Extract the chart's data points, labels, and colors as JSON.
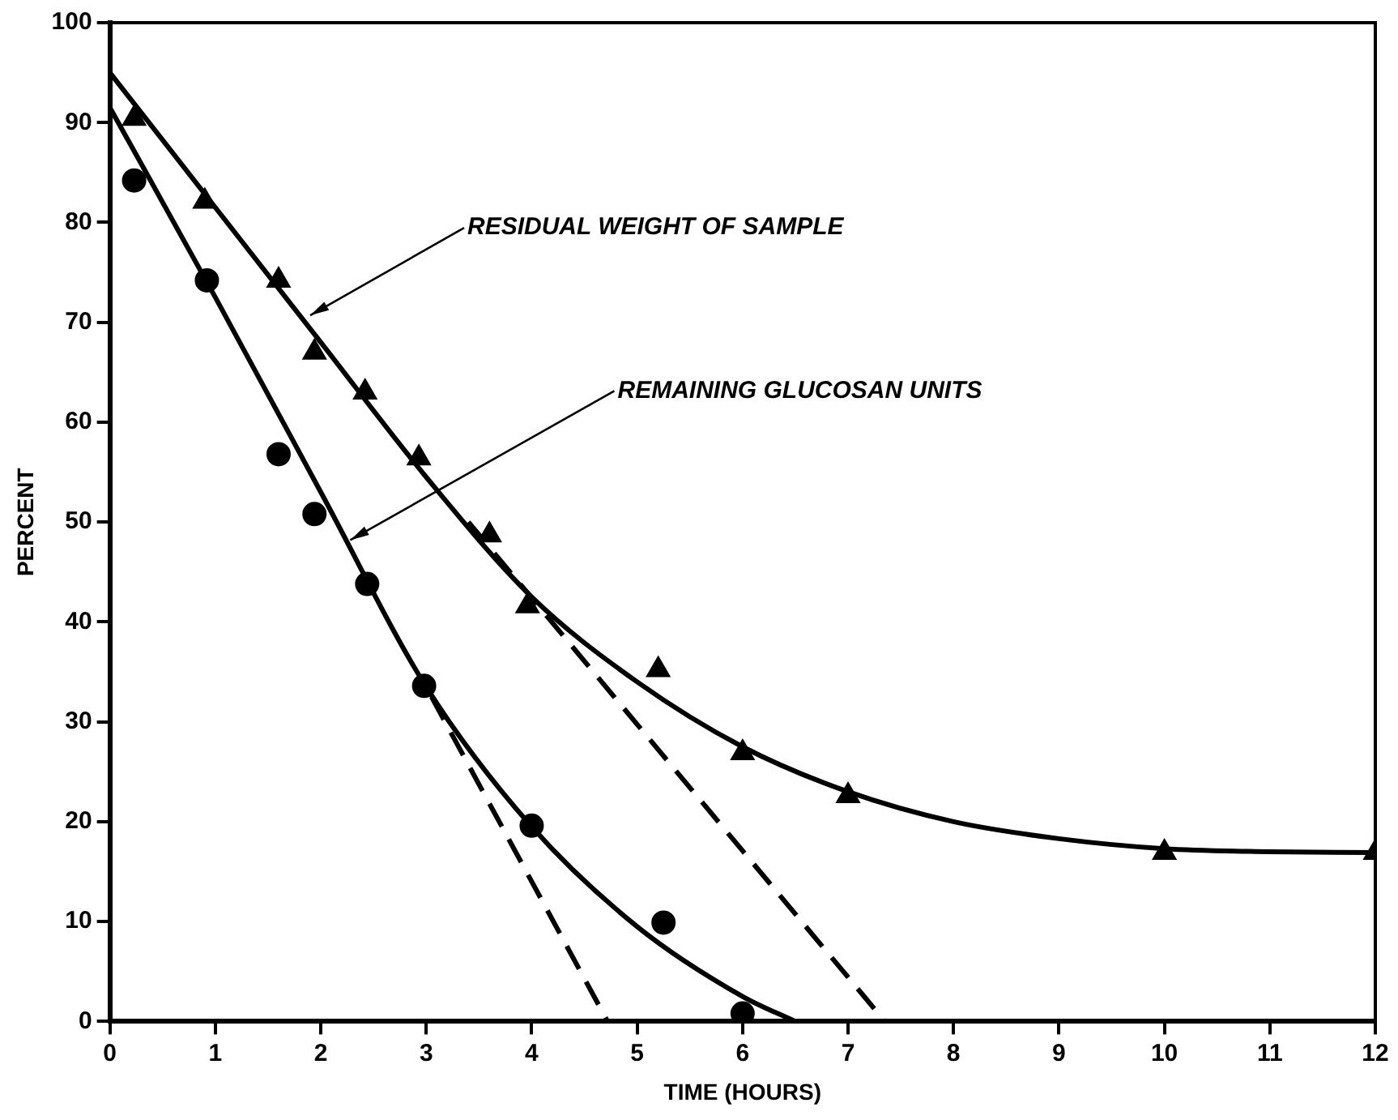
{
  "chart_data": {
    "type": "scatter",
    "xlabel": "TIME (HOURS)",
    "ylabel": "PERCENT",
    "xlim": [
      0,
      12
    ],
    "xticks": [
      0,
      1,
      2,
      3,
      4,
      5,
      6,
      7,
      8,
      9,
      10,
      11,
      12
    ],
    "ylim": [
      0,
      100
    ],
    "yticks": [
      0,
      10,
      20,
      30,
      40,
      50,
      60,
      70,
      80,
      90,
      100
    ],
    "grid": false,
    "legend": false,
    "series": [
      {
        "type": "scatter",
        "marker": "triangle",
        "color": "#000000",
        "x": [
          0.23,
          0.9,
          1.6,
          1.94,
          2.42,
          2.93,
          3.6,
          3.96,
          5.2,
          6.0,
          7.0,
          10.0,
          12.0
        ],
        "values": [
          90.4,
          82.1,
          74.2,
          67,
          63,
          56.4,
          48.7,
          41.6,
          35.2,
          26.9,
          22.6,
          16.9,
          16.9
        ]
      },
      {
        "type": "scatter",
        "marker": "circle",
        "color": "#000000",
        "x": [
          0.23,
          0.92,
          1.6,
          1.94,
          2.44,
          2.98,
          4.0,
          5.25,
          6.0
        ],
        "values": [
          84.2,
          74.2,
          56.8,
          50.8,
          43.8,
          33.6,
          19.6,
          9.9,
          0.8
        ]
      },
      {
        "type": "line",
        "marker": "none",
        "line_style": "solid",
        "color": "#000000",
        "x": [
          0,
          1,
          2,
          3,
          4,
          5,
          6,
          7,
          8,
          9,
          10,
          11,
          12
        ],
        "values": [
          95,
          81.5,
          68,
          54.5,
          42.5,
          34,
          27.5,
          23,
          20,
          18.3,
          17.3,
          17,
          16.9
        ]
      },
      {
        "type": "line",
        "marker": "none",
        "line_style": "solid",
        "color": "#000000",
        "x": [
          0,
          1,
          2,
          3,
          4,
          5,
          6,
          6.5
        ],
        "values": [
          91.5,
          72.5,
          53,
          33.5,
          19.5,
          9.5,
          2.5,
          0
        ]
      },
      {
        "type": "line",
        "marker": "none",
        "line_style": "dashed",
        "color": "#000000",
        "x": [
          3.4,
          7.35
        ],
        "values": [
          50,
          0
        ]
      },
      {
        "type": "line",
        "marker": "none",
        "line_style": "dashed",
        "color": "#000000",
        "x": [
          3.05,
          4.72
        ],
        "values": [
          32.5,
          0
        ]
      }
    ],
    "annotations": [
      {
        "text": "RESIDUAL WEIGHT OF SAMPLE",
        "x": 1.9,
        "y": 70.7
      },
      {
        "text": "REMAINING GLUCOSAN UNITS",
        "x": 2.28,
        "y": 48.2
      }
    ]
  }
}
